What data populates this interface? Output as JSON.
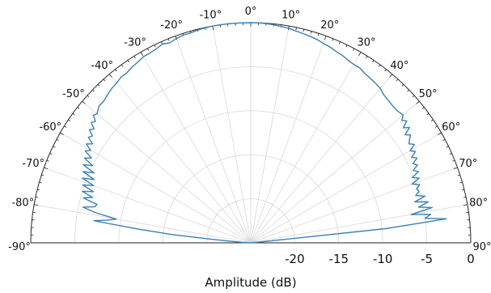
{
  "chart_data": {
    "type": "line",
    "subtype": "polar-half",
    "xlabel": "Amplitude (dB)",
    "radial_ticks": [
      "-20",
      "-15",
      "-10",
      "-5",
      "0"
    ],
    "radial_values": [
      -20,
      -15,
      -10,
      -5,
      0
    ],
    "rlim": [
      -25,
      0
    ],
    "angle_ticks_deg": [
      -90,
      -80,
      -70,
      -60,
      -50,
      -40,
      -30,
      -20,
      -10,
      0,
      10,
      20,
      30,
      40,
      50,
      60,
      70,
      80,
      90
    ],
    "angle_tick_labels": [
      "-90°",
      "-80°",
      "-70°",
      "-60°",
      "-50°",
      "-40°",
      "-30°",
      "-20°",
      "-10°",
      "0°",
      "10°",
      "20°",
      "30°",
      "40°",
      "50°",
      "60°",
      "70°",
      "80°",
      "90°"
    ],
    "grid": true,
    "series": [
      {
        "color": "#3a7fb5",
        "theta_deg": [
          -90,
          -87,
          -85,
          -84,
          -83,
          -82,
          -81,
          -80,
          -79,
          -78,
          -77,
          -76,
          -75,
          -74,
          -73,
          -72,
          -71,
          -70,
          -69,
          -68,
          -67,
          -66,
          -65,
          -64,
          -63,
          -62,
          -61,
          -60,
          -59,
          -58,
          -57,
          -56,
          -55,
          -54,
          -53,
          -52,
          -51,
          -50,
          -48,
          -46,
          -44,
          -42,
          -40,
          -38,
          -36,
          -34,
          -32,
          -30,
          -28,
          -26,
          -24,
          -22,
          -20,
          -18,
          -16,
          -14,
          -12,
          -10,
          -8,
          -6,
          -4,
          -2,
          0,
          2,
          4,
          6,
          8,
          10,
          12,
          14,
          16,
          18,
          20,
          22,
          24,
          26,
          28,
          30,
          32,
          34,
          36,
          38,
          40,
          42,
          44,
          46,
          48,
          50,
          51,
          52,
          53,
          54,
          55,
          56,
          57,
          58,
          59,
          60,
          61,
          62,
          63,
          64,
          65,
          66,
          67,
          68,
          69,
          70,
          71,
          72,
          73,
          74,
          75,
          76,
          77,
          78,
          79,
          80,
          81,
          82,
          83,
          84,
          85,
          87,
          90
        ],
        "r_db": [
          -25,
          -24,
          -21,
          -16,
          -12,
          -7,
          -8.5,
          -9.5,
          -7,
          -5.5,
          -6.8,
          -7,
          -5.3,
          -6.3,
          -5,
          -6.2,
          -4.8,
          -6,
          -4.5,
          -5.8,
          -4.3,
          -5.5,
          -4,
          -5,
          -3.8,
          -4.5,
          -3.5,
          -4,
          -3.2,
          -3.8,
          -3,
          -3.3,
          -2.6,
          -3,
          -2.3,
          -2.6,
          -2,
          -2.2,
          -1.8,
          -1.8,
          -1.6,
          -1.4,
          -1.3,
          -1.1,
          -1.1,
          -0.9,
          -0.8,
          -0.6,
          -0.6,
          -0.5,
          -0.3,
          -0.5,
          -0.3,
          -0.2,
          -0.2,
          -0.1,
          -0.05,
          0,
          0,
          0,
          0,
          0,
          0,
          0,
          -0.05,
          -0.1,
          -0.2,
          -0.25,
          -0.4,
          -0.5,
          -0.6,
          -0.7,
          -0.9,
          -1,
          -1.2,
          -1.3,
          -1.5,
          -1.6,
          -1.6,
          -1.8,
          -1.9,
          -2,
          -2.1,
          -2.4,
          -2.5,
          -2.6,
          -2.6,
          -2.4,
          -2.9,
          -2.5,
          -3.3,
          -2.7,
          -3.6,
          -3.1,
          -3.5,
          -3.8,
          -3.3,
          -4.1,
          -3.6,
          -4.3,
          -3.8,
          -4.5,
          -4.1,
          -4.8,
          -4.3,
          -5.2,
          -4.5,
          -5.5,
          -4.7,
          -5.2,
          -5,
          -5.5,
          -4.5,
          -5.8,
          -4.3,
          -5.5,
          -4,
          -6.5,
          -4.3,
          -5,
          -2.6,
          -9.5,
          -24,
          -25,
          -25
        ]
      }
    ]
  }
}
